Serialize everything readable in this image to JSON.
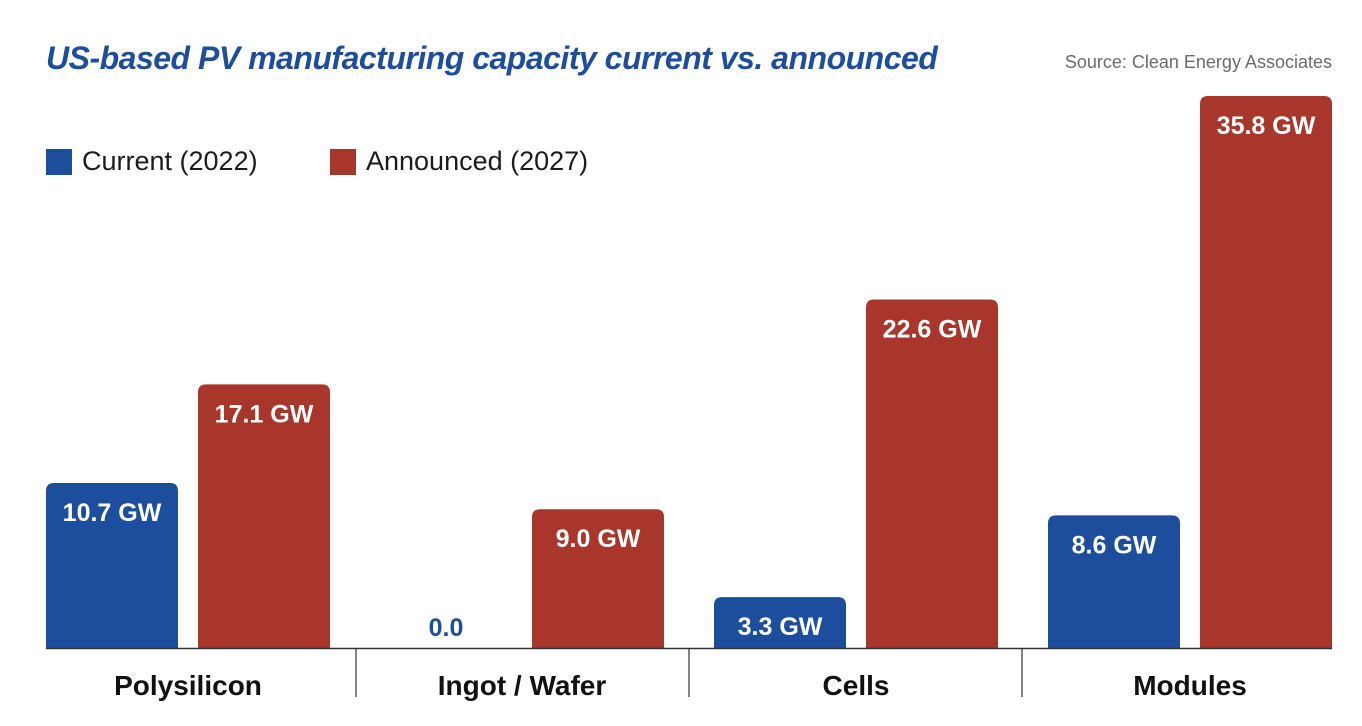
{
  "chart_data": {
    "type": "bar",
    "title": "US-based PV manufacturing capacity current vs. announced",
    "source": "Source: Clean Energy Associates",
    "categories": [
      "Polysilicon",
      "Ingot / Wafer",
      "Cells",
      "Modules"
    ],
    "series": [
      {
        "name": "Current (2022)",
        "color": "#1d4e9e",
        "values": [
          10.7,
          0.0,
          3.3,
          8.6
        ],
        "labels": [
          "10.7 GW",
          "0.0",
          "3.3 GW",
          "8.6 GW"
        ]
      },
      {
        "name": "Announced (2027)",
        "color": "#a8362b",
        "values": [
          17.1,
          9.0,
          22.6,
          35.8
        ],
        "labels": [
          "17.1 GW",
          "9.0 GW",
          "22.6 GW",
          "35.8 GW"
        ]
      }
    ],
    "unit": "GW",
    "xlabel": "",
    "ylabel": "",
    "ylim": [
      0,
      35.8
    ],
    "grid": false,
    "legend_position": "top-left"
  }
}
